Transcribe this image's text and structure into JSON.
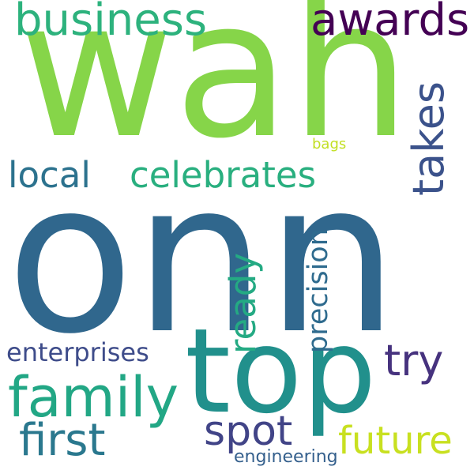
{
  "words": {
    "onn": {
      "text": "onn",
      "color": "#30678d"
    },
    "wah": {
      "text": "wah",
      "color": "#86d549"
    },
    "top": {
      "text": "top",
      "color": "#21908c"
    },
    "business": {
      "text": "business",
      "color": "#2db27d"
    },
    "awards": {
      "text": "awards",
      "color": "#440154"
    },
    "family": {
      "text": "family",
      "color": "#22a785"
    },
    "first": {
      "text": "first",
      "color": "#2a788e"
    },
    "spot": {
      "text": "spot",
      "color": "#414487"
    },
    "future": {
      "text": "future",
      "color": "#c8e020"
    },
    "try": {
      "text": "try",
      "color": "#46327e"
    },
    "local": {
      "text": "local",
      "color": "#2c728e"
    },
    "celebrates": {
      "text": "celebrates",
      "color": "#29af7f"
    },
    "takes": {
      "text": "takes",
      "color": "#3b528b"
    },
    "ready": {
      "text": "ready",
      "color": "#24aa83"
    },
    "precision": {
      "text": "precision",
      "color": "#2f6b8e"
    },
    "enterprises": {
      "text": "enterprises",
      "color": "#3e4c8a"
    },
    "engineering": {
      "text": "engineering",
      "color": "#35608d"
    },
    "bags": {
      "text": "bags",
      "color": "#c2df23"
    }
  }
}
